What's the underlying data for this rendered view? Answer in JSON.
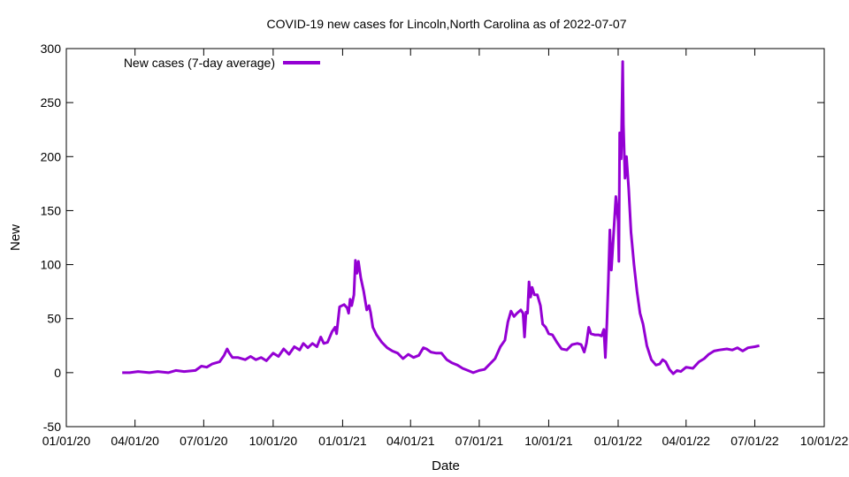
{
  "chart_data": {
    "type": "line",
    "title": "COVID-19 new cases for Lincoln,North Carolina as of 2022-07-07",
    "xlabel": "Date",
    "ylabel": "New",
    "ylim": [
      -50,
      300
    ],
    "yticks": [
      -50,
      0,
      50,
      100,
      150,
      200,
      250,
      300
    ],
    "xlim": [
      "2020-01-01",
      "2022-10-01"
    ],
    "xticks": [
      "01/01/20",
      "04/01/20",
      "07/01/20",
      "10/01/20",
      "01/01/21",
      "04/01/21",
      "07/01/21",
      "10/01/21",
      "01/01/22",
      "04/01/22",
      "07/01/22",
      "10/01/22"
    ],
    "legend_position": "top-left",
    "series": [
      {
        "name": "New cases (7-day average)",
        "color": "#9400d3",
        "points": [
          [
            "2020-03-15",
            0
          ],
          [
            "2020-03-25",
            0
          ],
          [
            "2020-04-05",
            1
          ],
          [
            "2020-04-20",
            0
          ],
          [
            "2020-05-01",
            1
          ],
          [
            "2020-05-15",
            0
          ],
          [
            "2020-05-25",
            2
          ],
          [
            "2020-06-05",
            1
          ],
          [
            "2020-06-20",
            2
          ],
          [
            "2020-06-28",
            6
          ],
          [
            "2020-07-05",
            5
          ],
          [
            "2020-07-12",
            8
          ],
          [
            "2020-07-22",
            10
          ],
          [
            "2020-07-28",
            16
          ],
          [
            "2020-08-01",
            22
          ],
          [
            "2020-08-04",
            18
          ],
          [
            "2020-08-08",
            14
          ],
          [
            "2020-08-15",
            14
          ],
          [
            "2020-08-25",
            12
          ],
          [
            "2020-09-01",
            15
          ],
          [
            "2020-09-08",
            12
          ],
          [
            "2020-09-15",
            14
          ],
          [
            "2020-09-22",
            11
          ],
          [
            "2020-10-01",
            18
          ],
          [
            "2020-10-08",
            15
          ],
          [
            "2020-10-15",
            22
          ],
          [
            "2020-10-22",
            17
          ],
          [
            "2020-10-29",
            24
          ],
          [
            "2020-11-05",
            21
          ],
          [
            "2020-11-10",
            27
          ],
          [
            "2020-11-16",
            23
          ],
          [
            "2020-11-22",
            27
          ],
          [
            "2020-11-28",
            24
          ],
          [
            "2020-12-03",
            33
          ],
          [
            "2020-12-07",
            27
          ],
          [
            "2020-12-12",
            28
          ],
          [
            "2020-12-18",
            38
          ],
          [
            "2020-12-22",
            42
          ],
          [
            "2020-12-24",
            36
          ],
          [
            "2020-12-28",
            61
          ],
          [
            "2021-01-03",
            63
          ],
          [
            "2021-01-07",
            60
          ],
          [
            "2021-01-09",
            55
          ],
          [
            "2021-01-11",
            68
          ],
          [
            "2021-01-13",
            62
          ],
          [
            "2021-01-16",
            72
          ],
          [
            "2021-01-18",
            104
          ],
          [
            "2021-01-20",
            92
          ],
          [
            "2021-01-22",
            103
          ],
          [
            "2021-01-25",
            88
          ],
          [
            "2021-01-29",
            75
          ],
          [
            "2021-02-02",
            58
          ],
          [
            "2021-02-05",
            62
          ],
          [
            "2021-02-07",
            56
          ],
          [
            "2021-02-10",
            42
          ],
          [
            "2021-02-15",
            35
          ],
          [
            "2021-02-22",
            28
          ],
          [
            "2021-03-01",
            23
          ],
          [
            "2021-03-08",
            20
          ],
          [
            "2021-03-15",
            18
          ],
          [
            "2021-03-22",
            13
          ],
          [
            "2021-03-29",
            17
          ],
          [
            "2021-04-05",
            14
          ],
          [
            "2021-04-12",
            16
          ],
          [
            "2021-04-18",
            23
          ],
          [
            "2021-04-22",
            22
          ],
          [
            "2021-04-28",
            19
          ],
          [
            "2021-05-05",
            18
          ],
          [
            "2021-05-12",
            18
          ],
          [
            "2021-05-19",
            12
          ],
          [
            "2021-05-26",
            9
          ],
          [
            "2021-06-02",
            7
          ],
          [
            "2021-06-09",
            4
          ],
          [
            "2021-06-16",
            2
          ],
          [
            "2021-06-23",
            0
          ],
          [
            "2021-07-01",
            2
          ],
          [
            "2021-07-08",
            3
          ],
          [
            "2021-07-15",
            8
          ],
          [
            "2021-07-22",
            13
          ],
          [
            "2021-07-29",
            24
          ],
          [
            "2021-08-04",
            30
          ],
          [
            "2021-08-08",
            47
          ],
          [
            "2021-08-12",
            57
          ],
          [
            "2021-08-16",
            52
          ],
          [
            "2021-08-20",
            55
          ],
          [
            "2021-08-25",
            58
          ],
          [
            "2021-08-28",
            55
          ],
          [
            "2021-08-30",
            33
          ],
          [
            "2021-09-01",
            56
          ],
          [
            "2021-09-03",
            55
          ],
          [
            "2021-09-05",
            84
          ],
          [
            "2021-09-07",
            70
          ],
          [
            "2021-09-09",
            79
          ],
          [
            "2021-09-12",
            72
          ],
          [
            "2021-09-16",
            72
          ],
          [
            "2021-09-20",
            62
          ],
          [
            "2021-09-23",
            45
          ],
          [
            "2021-09-27",
            42
          ],
          [
            "2021-10-01",
            36
          ],
          [
            "2021-10-06",
            35
          ],
          [
            "2021-10-12",
            28
          ],
          [
            "2021-10-18",
            22
          ],
          [
            "2021-10-25",
            21
          ],
          [
            "2021-11-01",
            26
          ],
          [
            "2021-11-08",
            27
          ],
          [
            "2021-11-13",
            26
          ],
          [
            "2021-11-17",
            19
          ],
          [
            "2021-11-20",
            27
          ],
          [
            "2021-11-23",
            42
          ],
          [
            "2021-11-26",
            36
          ],
          [
            "2021-12-01",
            35
          ],
          [
            "2021-12-06",
            35
          ],
          [
            "2021-12-10",
            34
          ],
          [
            "2021-12-13",
            40
          ],
          [
            "2021-12-15",
            14
          ],
          [
            "2021-12-17",
            45
          ],
          [
            "2021-12-19",
            85
          ],
          [
            "2021-12-21",
            132
          ],
          [
            "2021-12-23",
            95
          ],
          [
            "2021-12-26",
            128
          ],
          [
            "2021-12-29",
            163
          ],
          [
            "2022-01-01",
            140
          ],
          [
            "2022-01-02",
            103
          ],
          [
            "2022-01-03",
            222
          ],
          [
            "2022-01-05",
            198
          ],
          [
            "2022-01-07",
            288
          ],
          [
            "2022-01-08",
            230
          ],
          [
            "2022-01-10",
            180
          ],
          [
            "2022-01-12",
            200
          ],
          [
            "2022-01-15",
            170
          ],
          [
            "2022-01-18",
            130
          ],
          [
            "2022-01-22",
            100
          ],
          [
            "2022-01-26",
            75
          ],
          [
            "2022-01-30",
            55
          ],
          [
            "2022-02-03",
            45
          ],
          [
            "2022-02-08",
            25
          ],
          [
            "2022-02-14",
            12
          ],
          [
            "2022-02-20",
            7
          ],
          [
            "2022-02-25",
            8
          ],
          [
            "2022-03-01",
            12
          ],
          [
            "2022-03-05",
            10
          ],
          [
            "2022-03-10",
            3
          ],
          [
            "2022-03-15",
            -1
          ],
          [
            "2022-03-20",
            2
          ],
          [
            "2022-03-25",
            1
          ],
          [
            "2022-04-01",
            5
          ],
          [
            "2022-04-10",
            4
          ],
          [
            "2022-04-18",
            10
          ],
          [
            "2022-04-25",
            13
          ],
          [
            "2022-05-01",
            17
          ],
          [
            "2022-05-08",
            20
          ],
          [
            "2022-05-15",
            21
          ],
          [
            "2022-05-25",
            22
          ],
          [
            "2022-06-01",
            21
          ],
          [
            "2022-06-08",
            23
          ],
          [
            "2022-06-15",
            20
          ],
          [
            "2022-06-22",
            23
          ],
          [
            "2022-07-01",
            24
          ],
          [
            "2022-07-07",
            25
          ]
        ]
      }
    ]
  }
}
